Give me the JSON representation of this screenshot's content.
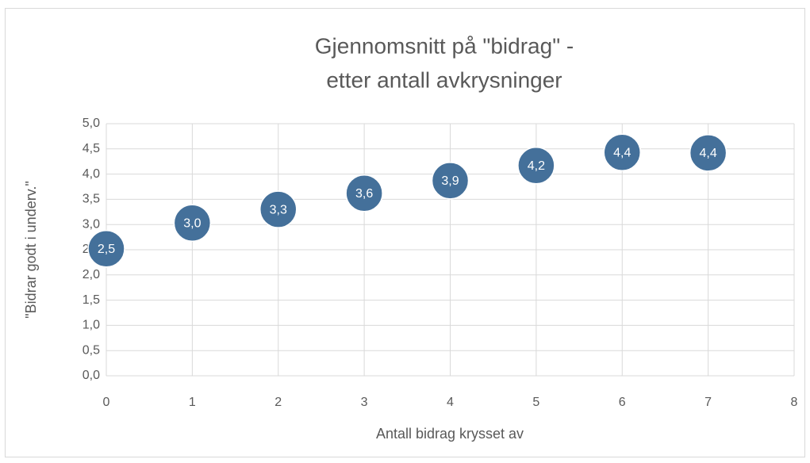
{
  "chart_data": {
    "type": "scatter",
    "title": [
      "Gjennomsnitt på \"bidrag\" -",
      "etter antall avkrysninger"
    ],
    "x_label": "Antall bidrag krysset av",
    "y_label": "\"Bidrar godt i underv.\"",
    "x": [
      0,
      1,
      2,
      3,
      4,
      5,
      6,
      7
    ],
    "values": [
      2.52,
      3.03,
      3.3,
      3.62,
      3.87,
      4.17,
      4.43,
      4.42
    ],
    "value_labels": [
      "2,5",
      "3,0",
      "3,3",
      "3,6",
      "3,9",
      "4,2",
      "4,4",
      "4,4"
    ],
    "color": "#44709a",
    "xlim": [
      0,
      8
    ],
    "xticks": [
      0,
      1,
      2,
      3,
      4,
      5,
      6,
      7,
      8
    ],
    "ylim": [
      0,
      5
    ],
    "yticks": [
      {
        "value": 0,
        "label": "0,0"
      },
      {
        "value": 0.5,
        "label": "0,5"
      },
      {
        "value": 1,
        "label": "1,0"
      },
      {
        "value": 1.5,
        "label": "1,5"
      },
      {
        "value": 2,
        "label": "2,0"
      },
      {
        "value": 2.5,
        "label": "2,5"
      },
      {
        "value": 3,
        "label": "3,0"
      },
      {
        "value": 3.5,
        "label": "3,5"
      },
      {
        "value": 4,
        "label": "4,0"
      },
      {
        "value": 4.5,
        "label": "4,5"
      },
      {
        "value": 5,
        "label": "5,0"
      }
    ],
    "grid": true
  }
}
